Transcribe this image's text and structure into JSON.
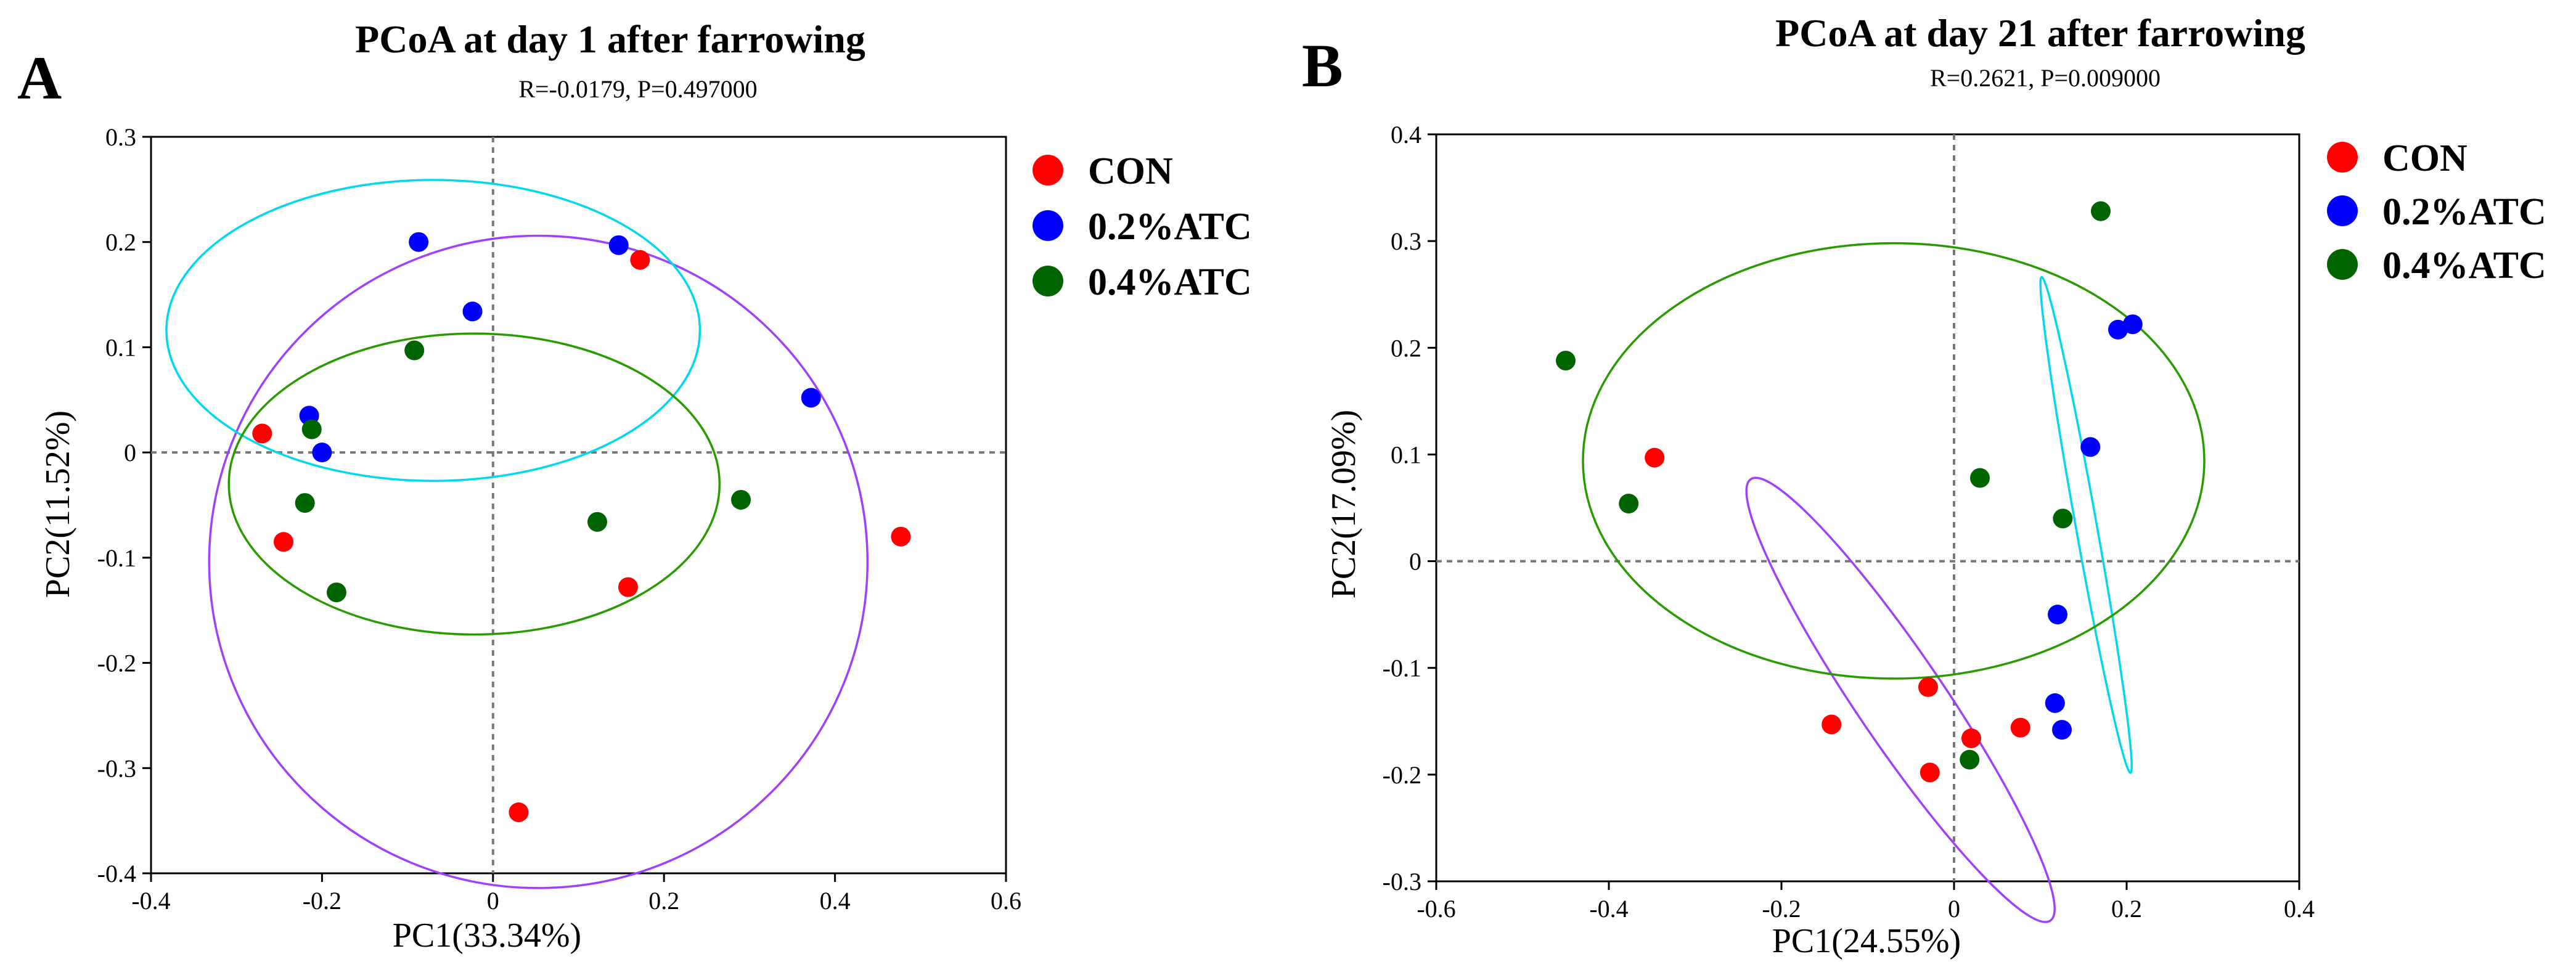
{
  "chart_data": [
    {
      "type": "scatter",
      "panel": "A",
      "title": "PCoA at day 1 after farrowing",
      "subtitle": "R=-0.0179, P=0.497000",
      "xlabel": "PC1(33.34%)",
      "ylabel": "PC2(11.52%)",
      "xlim": [
        -0.4,
        0.6
      ],
      "ylim": [
        -0.4,
        0.3
      ],
      "xticks": [
        -0.4,
        -0.2,
        0,
        0.2,
        0.4,
        0.6
      ],
      "yticks": [
        -0.4,
        -0.3,
        -0.2,
        -0.1,
        0,
        0.1,
        0.2,
        0.3
      ],
      "xtick_labels": [
        "-0.4",
        "-0.2",
        "0",
        "0.2",
        "0.4",
        "0.6"
      ],
      "ytick_labels": [
        "-0.4",
        "-0.3",
        "-0.2",
        "-0.1",
        "0",
        "0.1",
        "0.2",
        "0.3"
      ],
      "zero_lines": true,
      "legend_position": "right",
      "series": [
        {
          "name": "CON",
          "color": "#ff0000",
          "points": [
            [
              -0.27,
              0.018
            ],
            [
              -0.245,
              -0.085
            ],
            [
              0.172,
              0.183
            ],
            [
              0.158,
              -0.128
            ],
            [
              0.477,
              -0.08
            ],
            [
              0.03,
              -0.342
            ]
          ],
          "ellipse": {
            "cx": 0.053,
            "cy": -0.104,
            "rx": 0.385,
            "ry": 0.31,
            "angle": 0,
            "color": "#a040ff"
          }
        },
        {
          "name": "0.2%ATC",
          "color": "#0000ff",
          "points": [
            [
              -0.087,
              0.2
            ],
            [
              0.147,
              0.197
            ],
            [
              -0.024,
              0.134
            ],
            [
              -0.215,
              0.035
            ],
            [
              -0.2,
              0
            ],
            [
              0.372,
              0.052
            ]
          ],
          "ellipse": {
            "cx": -0.07,
            "cy": 0.116,
            "rx": 0.312,
            "ry": 0.143,
            "angle": 0,
            "color": "#00d8f0"
          }
        },
        {
          "name": "0.4%ATC",
          "color": "#006400",
          "points": [
            [
              -0.092,
              0.097
            ],
            [
              -0.212,
              0.022
            ],
            [
              -0.22,
              -0.048
            ],
            [
              -0.183,
              -0.133
            ],
            [
              0.122,
              -0.066
            ],
            [
              0.29,
              -0.045
            ]
          ],
          "ellipse": {
            "cx": -0.022,
            "cy": -0.03,
            "rx": 0.287,
            "ry": 0.143,
            "angle": 0,
            "color": "#289b00"
          }
        }
      ]
    },
    {
      "type": "scatter",
      "panel": "B",
      "title": "PCoA at day 21 after farrowing",
      "subtitle": "R=0.2621, P=0.009000",
      "xlabel": "PC1(24.55%)",
      "ylabel": "PC2(17.09%)",
      "xlim": [
        -0.6,
        0.4
      ],
      "ylim": [
        -0.3,
        0.4
      ],
      "xticks": [
        -0.6,
        -0.4,
        -0.2,
        0,
        0.2,
        0.4
      ],
      "yticks": [
        -0.3,
        -0.2,
        -0.1,
        0,
        0.1,
        0.2,
        0.3,
        0.4
      ],
      "xtick_labels": [
        "-0.6",
        "-0.4",
        "-0.2",
        "0",
        "0.2",
        "0.4"
      ],
      "ytick_labels": [
        "-0.3",
        "-0.2",
        "-0.1",
        "0",
        "0.1",
        "0.2",
        "0.3",
        "0.4"
      ],
      "zero_lines": true,
      "legend_position": "right",
      "series": [
        {
          "name": "CON",
          "color": "#ff0000",
          "points": [
            [
              -0.347,
              0.097
            ],
            [
              -0.142,
              -0.153
            ],
            [
              -0.03,
              -0.118
            ],
            [
              -0.028,
              -0.198
            ],
            [
              0.02,
              -0.166
            ],
            [
              0.077,
              -0.156
            ]
          ],
          "ellipse": {
            "cx": -0.062,
            "cy": -0.13,
            "rx": 0.27,
            "ry": 0.046,
            "angle": -50,
            "color": "#a040ff"
          }
        },
        {
          "name": "0.2%ATC",
          "color": "#0000ff",
          "points": [
            [
              0.19,
              0.217
            ],
            [
              0.207,
              0.222
            ],
            [
              0.158,
              0.107
            ],
            [
              0.12,
              -0.05
            ],
            [
              0.117,
              -0.133
            ],
            [
              0.125,
              -0.158
            ]
          ],
          "ellipse": {
            "cx": 0.153,
            "cy": 0.034,
            "rx": 0.238,
            "ry": 0.012,
            "angle": -77.5,
            "color": "#00d8f0"
          }
        },
        {
          "name": "0.4%ATC",
          "color": "#006400",
          "points": [
            [
              0.17,
              0.328
            ],
            [
              -0.45,
              0.188
            ],
            [
              -0.377,
              0.054
            ],
            [
              0.03,
              0.078
            ],
            [
              0.126,
              0.04
            ],
            [
              0.018,
              -0.186
            ]
          ],
          "ellipse": {
            "cx": -0.07,
            "cy": 0.094,
            "rx": 0.36,
            "ry": 0.204,
            "angle": 0,
            "color": "#289b00"
          }
        }
      ]
    }
  ]
}
